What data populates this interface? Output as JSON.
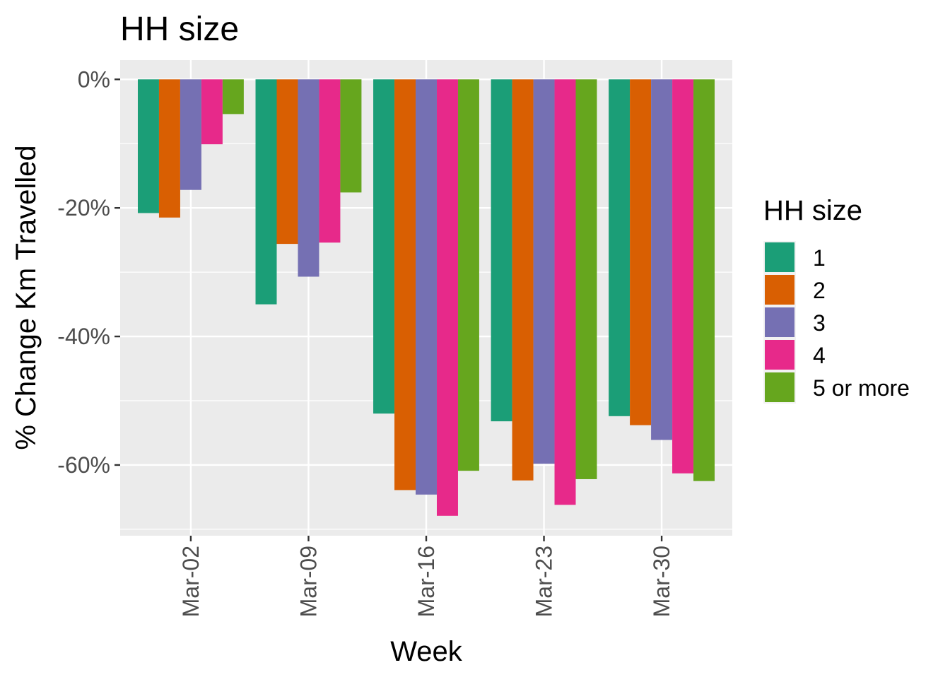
{
  "chart_data": {
    "type": "bar",
    "title": "HH size",
    "xlabel": "Week",
    "ylabel": "% Change Km Travelled",
    "categories": [
      "Mar-02",
      "Mar-09",
      "Mar-16",
      "Mar-23",
      "Mar-30"
    ],
    "y_ticks": [
      0,
      -20,
      -40,
      -60
    ],
    "y_tick_labels": [
      "0%",
      "-20%",
      "-40%",
      "-60%"
    ],
    "ylim": [
      -71,
      3
    ],
    "grid": true,
    "legend": {
      "title": "HH size",
      "position": "right"
    },
    "series": [
      {
        "name": "1",
        "color": "#1B9E77",
        "values": [
          -20.8,
          -35.0,
          -52.0,
          -53.2,
          -52.4
        ]
      },
      {
        "name": "2",
        "color": "#D95F02",
        "values": [
          -21.5,
          -25.6,
          -63.9,
          -62.4,
          -53.8
        ]
      },
      {
        "name": "3",
        "color": "#7570B3",
        "values": [
          -17.2,
          -30.7,
          -64.6,
          -59.8,
          -56.1
        ]
      },
      {
        "name": "4",
        "color": "#E7298A",
        "values": [
          -10.1,
          -25.4,
          -67.9,
          -66.2,
          -61.3
        ]
      },
      {
        "name": "5 or more",
        "color": "#66A61E",
        "values": [
          -5.4,
          -17.6,
          -60.9,
          -62.2,
          -62.5
        ]
      }
    ]
  }
}
